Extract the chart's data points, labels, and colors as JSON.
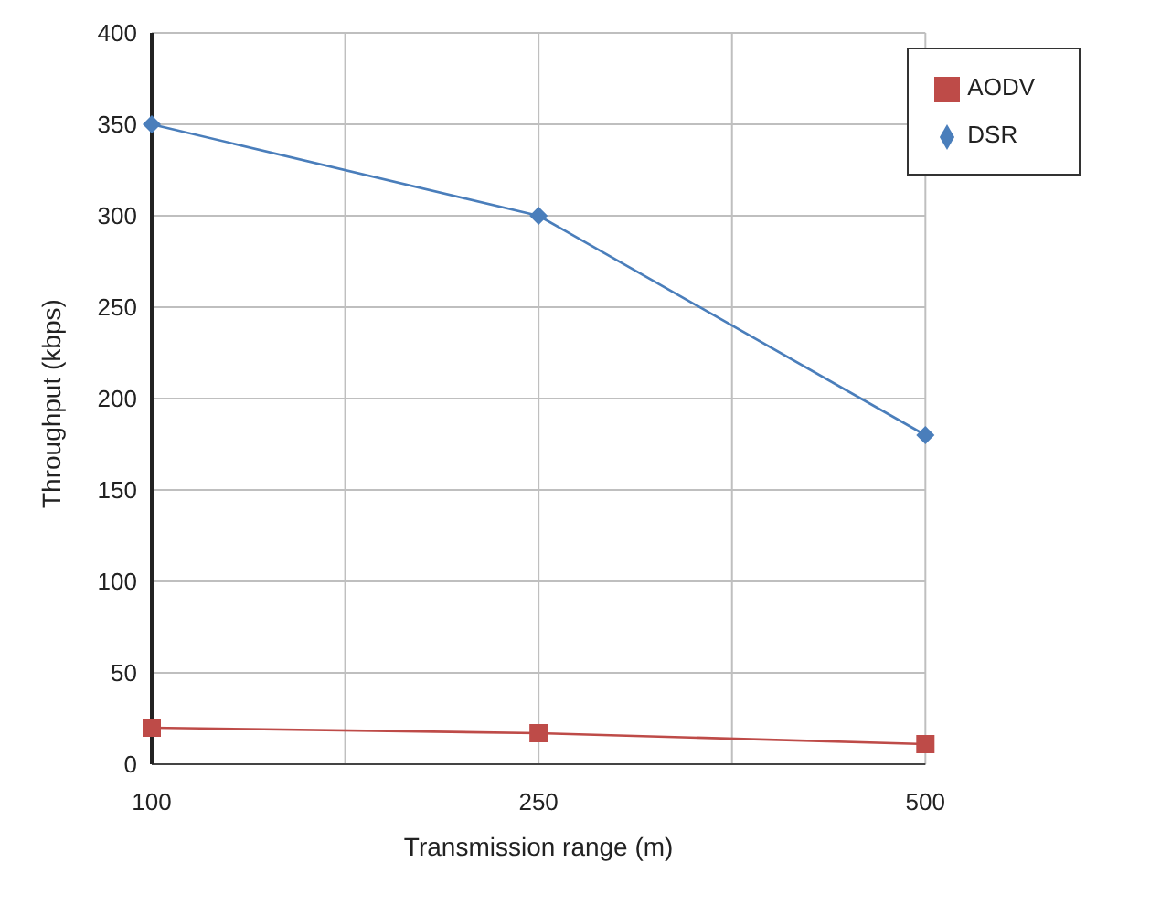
{
  "chart_data": {
    "type": "line",
    "xlabel": "Transmission range (m)",
    "ylabel": "Throughput (kbps)",
    "categories": [
      "100",
      null,
      "250",
      null,
      "500"
    ],
    "series": [
      {
        "name": "DSR",
        "color": "#4a7ebb",
        "marker": "diamond",
        "values": [
          350,
          null,
          300,
          null,
          180
        ]
      },
      {
        "name": "AODV",
        "color": "#be4b48",
        "marker": "square",
        "values": [
          20,
          null,
          17,
          null,
          11
        ]
      }
    ],
    "ylim": [
      0,
      400
    ],
    "yticks": [
      0,
      50,
      100,
      150,
      200,
      250,
      300,
      350,
      400
    ],
    "grid": true,
    "legend": "top right"
  }
}
